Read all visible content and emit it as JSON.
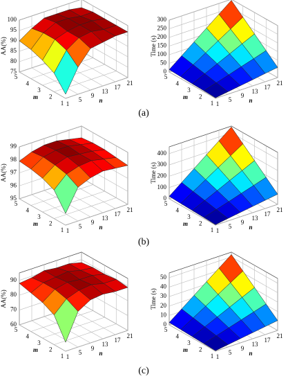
{
  "chart_data": [
    {
      "type": "surface",
      "zlabel": "AA(%)",
      "xlabel": "n",
      "ylabel": "m",
      "colormap": "jet",
      "x": [
        1,
        5,
        9,
        13,
        17,
        21
      ],
      "y": [
        1,
        2,
        3,
        4,
        5
      ],
      "xlim": [
        1,
        21
      ],
      "ylim": [
        1,
        5
      ],
      "xticks": [
        1,
        5,
        9,
        13,
        17,
        21
      ],
      "yticks": [
        1,
        2,
        3,
        4,
        5
      ],
      "zlim": [
        75,
        100
      ],
      "zticks": [
        75,
        80,
        85,
        90,
        95,
        100
      ],
      "values": [
        [
          77,
          88,
          95,
          96,
          97,
          97
        ],
        [
          84,
          93,
          97,
          98,
          97,
          97
        ],
        [
          87,
          95,
          97,
          98,
          98,
          97
        ],
        [
          89,
          95,
          98,
          98,
          97,
          97
        ],
        [
          90,
          94,
          97,
          97,
          97,
          96
        ]
      ]
    },
    {
      "type": "surface",
      "zlabel": "Time (s)",
      "xlabel": "n",
      "ylabel": "m",
      "colormap": "jet",
      "x": [
        1,
        5,
        9,
        13,
        17,
        21
      ],
      "y": [
        1,
        2,
        3,
        4,
        5
      ],
      "xlim": [
        1,
        21
      ],
      "ylim": [
        1,
        5
      ],
      "xticks": [
        1,
        5,
        9,
        13,
        17,
        21
      ],
      "yticks": [
        1,
        2,
        3,
        4,
        5
      ],
      "zlim": [
        0,
        300
      ],
      "zticks": [
        0,
        50,
        100,
        150,
        200,
        250,
        300
      ],
      "values": [
        [
          3,
          14,
          25,
          36,
          48,
          59
        ],
        [
          6,
          28,
          50,
          73,
          95,
          118
        ],
        [
          8,
          42,
          76,
          109,
          143,
          176
        ],
        [
          11,
          56,
          101,
          146,
          190,
          235
        ],
        [
          14,
          70,
          126,
          182,
          238,
          294
        ]
      ]
    },
    {
      "type": "surface",
      "zlabel": "AA(%)",
      "xlabel": "n",
      "ylabel": "m",
      "colormap": "jet",
      "x": [
        1,
        5,
        9,
        13,
        17,
        21
      ],
      "y": [
        1,
        2,
        3,
        4,
        5
      ],
      "xlim": [
        1,
        21
      ],
      "ylim": [
        1,
        5
      ],
      "xticks": [
        1,
        5,
        9,
        13,
        17,
        21
      ],
      "yticks": [
        1,
        2,
        3,
        4,
        5
      ],
      "zlim": [
        95,
        99
      ],
      "zticks": [
        95,
        96,
        97,
        98,
        99
      ],
      "values": [
        [
          95.9,
          97.6,
          98.0,
          98.2,
          98.1,
          98.0
        ],
        [
          97.2,
          98.1,
          98.4,
          98.5,
          98.3,
          98.1
        ],
        [
          97.6,
          98.3,
          98.6,
          98.5,
          98.4,
          98.2
        ],
        [
          97.8,
          98.4,
          98.6,
          98.6,
          98.4,
          98.2
        ],
        [
          97.9,
          98.3,
          98.5,
          98.5,
          98.3,
          98.1
        ]
      ]
    },
    {
      "type": "surface",
      "zlabel": "Time (s)",
      "xlabel": "n",
      "ylabel": "m",
      "colormap": "jet",
      "x": [
        1,
        5,
        9,
        13,
        17,
        21
      ],
      "y": [
        1,
        2,
        3,
        4,
        5
      ],
      "xlim": [
        1,
        21
      ],
      "ylim": [
        1,
        5
      ],
      "xticks": [
        1,
        5,
        9,
        13,
        17,
        21
      ],
      "yticks": [
        1,
        2,
        3,
        4,
        5
      ],
      "zlim": [
        0,
        460
      ],
      "zticks": [
        0,
        100,
        200,
        300,
        400
      ],
      "values": [
        [
          4,
          22,
          39,
          56,
          73,
          90
        ],
        [
          9,
          43,
          77,
          112,
          146,
          181
        ],
        [
          13,
          65,
          116,
          168,
          219,
          271
        ],
        [
          17,
          86,
          155,
          224,
          292,
          361
        ],
        [
          22,
          108,
          194,
          280,
          366,
          452
        ]
      ]
    },
    {
      "type": "surface",
      "zlabel": "AA(%)",
      "xlabel": "n",
      "ylabel": "m",
      "colormap": "jet",
      "x": [
        1,
        5,
        9,
        13,
        17,
        21
      ],
      "y": [
        1,
        2,
        3,
        4,
        5
      ],
      "xlim": [
        1,
        21
      ],
      "ylim": [
        1,
        5
      ],
      "xticks": [
        1,
        5,
        9,
        13,
        17,
        21
      ],
      "yticks": [
        1,
        2,
        3,
        4,
        5
      ],
      "zlim": [
        60,
        95
      ],
      "zticks": [
        60,
        70,
        80,
        90
      ],
      "values": [
        [
          66,
          84,
          89,
          90,
          89,
          89
        ],
        [
          80,
          88,
          91,
          92,
          90,
          90
        ],
        [
          84,
          90,
          92,
          91,
          91,
          89
        ],
        [
          86,
          90,
          91,
          92,
          90,
          89
        ],
        [
          88,
          89,
          91,
          90,
          90,
          88
        ]
      ]
    },
    {
      "type": "surface",
      "zlabel": "Time (s)",
      "xlabel": "n",
      "ylabel": "m",
      "colormap": "jet",
      "x": [
        1,
        5,
        9,
        13,
        17,
        21
      ],
      "y": [
        1,
        2,
        3,
        4,
        5
      ],
      "xlim": [
        1,
        21
      ],
      "ylim": [
        1,
        5
      ],
      "xticks": [
        1,
        5,
        9,
        13,
        17,
        21
      ],
      "yticks": [
        1,
        2,
        3,
        4,
        5
      ],
      "zlim": [
        0,
        55
      ],
      "zticks": [
        0,
        10,
        20,
        30,
        40,
        50
      ],
      "values": [
        [
          0.5,
          2.5,
          4.5,
          6.5,
          8.5,
          10.5
        ],
        [
          1,
          5,
          9,
          13,
          17,
          21
        ],
        [
          1.5,
          7.5,
          13.5,
          19.5,
          25.5,
          31.5
        ],
        [
          2,
          10,
          18,
          26,
          34,
          42
        ],
        [
          2.5,
          12.5,
          22.5,
          32.5,
          42.5,
          52.5
        ]
      ]
    }
  ],
  "panel_labels": [
    "(a)",
    "(b)",
    "(c)"
  ]
}
